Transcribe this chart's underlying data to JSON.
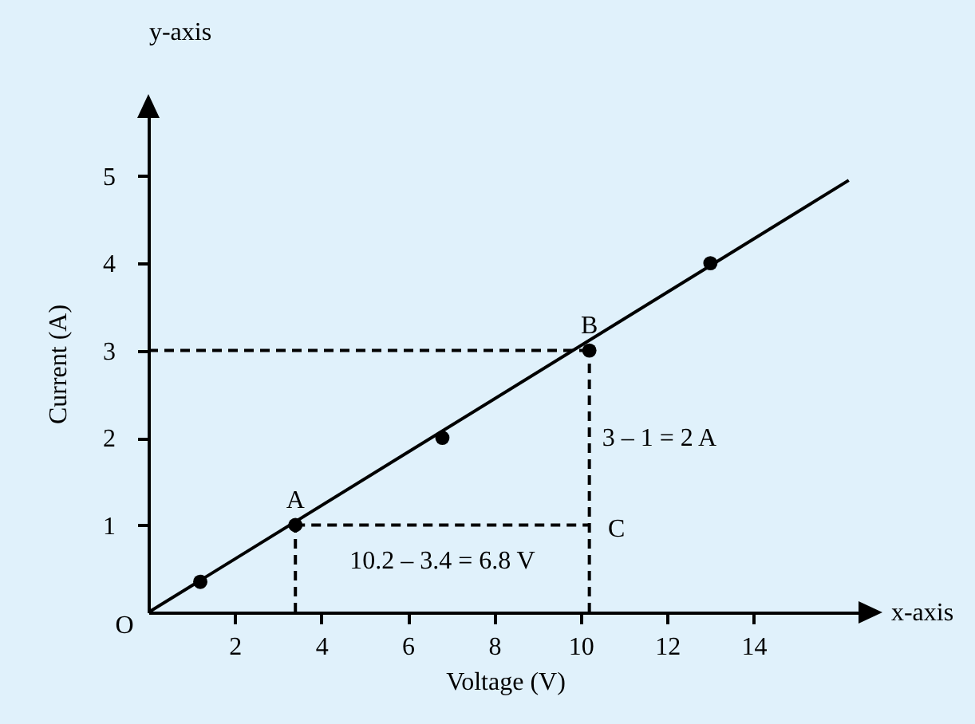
{
  "chart_data": {
    "type": "line",
    "xlabel": "Voltage (V)",
    "ylabel": "Current (A)",
    "xlim": [
      0,
      16.5
    ],
    "ylim": [
      0,
      5.7
    ],
    "xticks": [
      2,
      4,
      6,
      8,
      10,
      12,
      14
    ],
    "yticks": [
      1,
      2,
      3,
      4,
      5
    ],
    "grid": false,
    "series": [
      {
        "x": [
          0,
          16.2
        ],
        "values": [
          0,
          4.95
        ],
        "color": "#000000",
        "line_style": "solid"
      },
      {
        "type": "scatter",
        "x": [
          1.2,
          3.4,
          6.8,
          10.2,
          13
        ],
        "values": [
          0.35,
          1,
          2,
          3,
          4
        ],
        "color": "#000000",
        "marker": "circle"
      },
      {
        "x": [
          0,
          10.2
        ],
        "values": [
          3,
          3
        ],
        "color": "#000000",
        "line_style": "dashed"
      },
      {
        "x": [
          10.2,
          10.2
        ],
        "values": [
          0,
          3
        ],
        "color": "#000000",
        "line_style": "dashed"
      },
      {
        "x": [
          3.4,
          10.2
        ],
        "values": [
          1,
          1
        ],
        "color": "#000000",
        "line_style": "dashed"
      },
      {
        "x": [
          3.4,
          3.4
        ],
        "values": [
          0,
          1
        ],
        "color": "#000000",
        "line_style": "dashed"
      }
    ],
    "annotations": [
      "y-axis",
      "x-axis",
      {
        "text": "O",
        "x": 0,
        "y": 0
      },
      {
        "text": "A",
        "x": 3.4,
        "y": 1
      },
      {
        "text": "B",
        "x": 10.2,
        "y": 3
      },
      {
        "text": "C",
        "x": 10.2,
        "y": 1
      },
      {
        "text": "10.2 – 3.4 = 6.8 V",
        "x": 6.8,
        "y": 1
      },
      {
        "text": "3 – 1 = 2 A",
        "x": 10.2,
        "y": 2
      }
    ]
  }
}
